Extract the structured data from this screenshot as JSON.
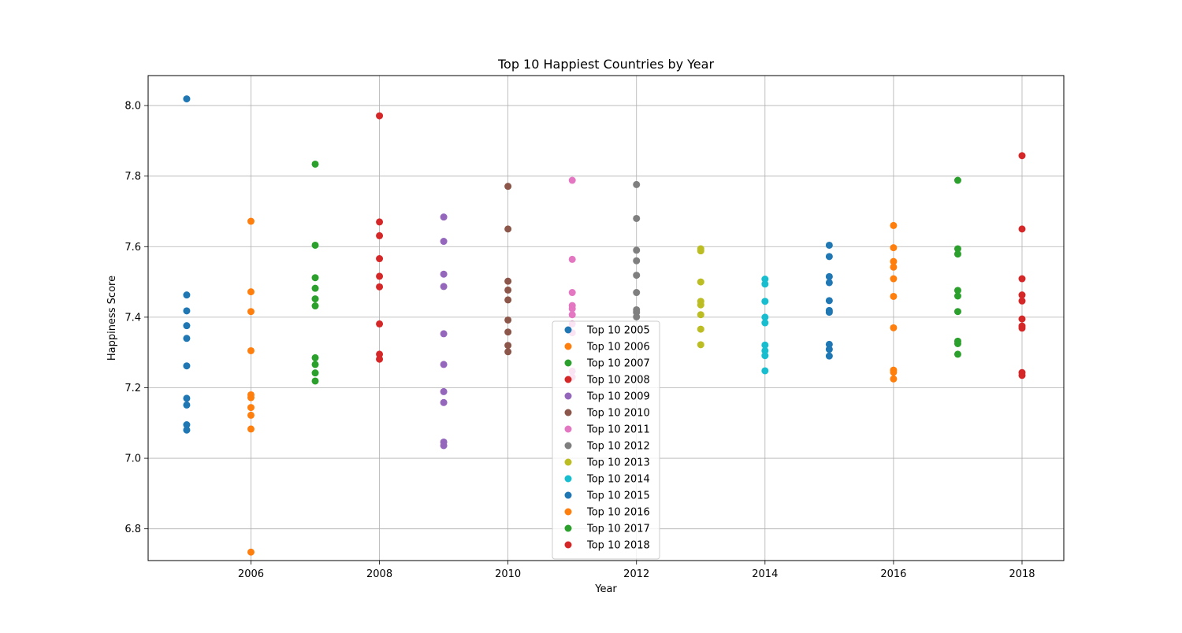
{
  "chart_data": {
    "type": "scatter",
    "title": "Top 10 Happiest Countries by Year",
    "xlabel": "Year",
    "ylabel": "Happiness Score",
    "xlim": [
      2004.4,
      2018.65
    ],
    "ylim": [
      6.71,
      8.085
    ],
    "xticks": [
      2006,
      2008,
      2010,
      2012,
      2014,
      2016,
      2018
    ],
    "yticks": [
      6.8,
      7.0,
      7.2,
      7.4,
      7.6,
      7.8,
      8.0
    ],
    "xtick_labels": [
      "2006",
      "2008",
      "2010",
      "2012",
      "2014",
      "2016",
      "2018"
    ],
    "ytick_labels": [
      "6.8",
      "7.0",
      "7.2",
      "7.4",
      "7.6",
      "7.8",
      "8.0"
    ],
    "grid": true,
    "legend_position": "center-bottom",
    "series": [
      {
        "name": "Top 10 2005",
        "color": "#1f77b4",
        "x": 2005,
        "values": [
          8.019,
          7.463,
          7.418,
          7.376,
          7.34,
          7.262,
          7.17,
          7.151,
          7.095,
          7.08
        ]
      },
      {
        "name": "Top 10 2006",
        "color": "#ff7f0e",
        "x": 2006,
        "values": [
          7.672,
          7.472,
          7.416,
          7.305,
          7.18,
          7.172,
          7.144,
          7.122,
          7.083,
          6.734
        ]
      },
      {
        "name": "Top 10 2007",
        "color": "#2ca02c",
        "x": 2007,
        "values": [
          7.834,
          7.604,
          7.512,
          7.482,
          7.452,
          7.432,
          7.285,
          7.266,
          7.242,
          7.219
        ]
      },
      {
        "name": "Top 10 2008",
        "color": "#d62728",
        "x": 2008,
        "values": [
          7.971,
          7.67,
          7.631,
          7.566,
          7.516,
          7.486,
          7.381,
          7.295,
          7.281
        ]
      },
      {
        "name": "Top 10 2009",
        "color": "#9467bd",
        "x": 2009,
        "values": [
          7.684,
          7.615,
          7.522,
          7.487,
          7.353,
          7.266,
          7.189,
          7.158,
          7.046,
          7.036
        ]
      },
      {
        "name": "Top 10 2010",
        "color": "#8c564b",
        "x": 2010,
        "values": [
          7.771,
          7.65,
          7.502,
          7.477,
          7.449,
          7.392,
          7.358,
          7.32,
          7.302
        ]
      },
      {
        "name": "Top 10 2011",
        "color": "#e377c2",
        "x": 2011,
        "values": [
          7.788,
          7.564,
          7.47,
          7.433,
          7.424,
          7.407,
          7.381,
          7.356,
          7.247,
          7.23
        ]
      },
      {
        "name": "Top 10 2012",
        "color": "#7f7f7f",
        "x": 2012,
        "values": [
          7.776,
          7.68,
          7.59,
          7.56,
          7.519,
          7.47,
          7.421,
          7.414,
          7.401
        ]
      },
      {
        "name": "Top 10 2013",
        "color": "#bcbd22",
        "x": 2013,
        "values": [
          7.594,
          7.588,
          7.5,
          7.445,
          7.435,
          7.407,
          7.366,
          7.322
        ]
      },
      {
        "name": "Top 10 2014",
        "color": "#17becf",
        "x": 2014,
        "values": [
          7.508,
          7.494,
          7.445,
          7.4,
          7.384,
          7.321,
          7.305,
          7.291,
          7.248
        ]
      },
      {
        "name": "Top 10 2015",
        "color": "#1f77b4",
        "x": 2015,
        "values": [
          7.604,
          7.572,
          7.515,
          7.498,
          7.447,
          7.419,
          7.414,
          7.323,
          7.309,
          7.29
        ]
      },
      {
        "name": "Top 10 2016",
        "color": "#ff7f0e",
        "x": 2016,
        "values": [
          7.66,
          7.597,
          7.558,
          7.542,
          7.509,
          7.459,
          7.37,
          7.25,
          7.244,
          7.225
        ]
      },
      {
        "name": "Top 10 2017",
        "color": "#2ca02c",
        "x": 2017,
        "values": [
          7.788,
          7.594,
          7.579,
          7.476,
          7.46,
          7.416,
          7.332,
          7.325,
          7.295
        ]
      },
      {
        "name": "Top 10 2018",
        "color": "#d62728",
        "x": 2018,
        "values": [
          7.858,
          7.65,
          7.509,
          7.463,
          7.446,
          7.395,
          7.375,
          7.369,
          7.243,
          7.235
        ]
      }
    ]
  }
}
